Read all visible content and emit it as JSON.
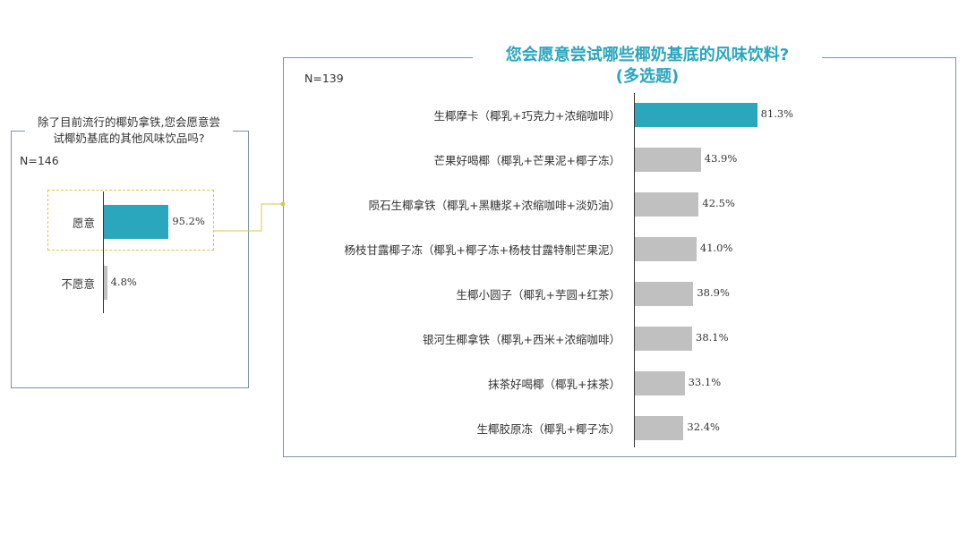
{
  "left": {
    "title_line1": "除了目前流行的椰奶拿铁,您会愿意尝",
    "title_line2": "试椰奶基底的其他风味饮品吗?",
    "n": "N=146"
  },
  "right": {
    "title_line1": "您会愿意尝试哪些椰奶基底的风味饮料?",
    "title_line2": "(多选题)",
    "n": "N=139"
  },
  "colors": {
    "accent": "#2aa6bd",
    "bar_gray": "#c0c0c0",
    "border": "#7f93a6",
    "connector": "#d8c64e"
  },
  "chart_data": [
    {
      "type": "bar",
      "orientation": "horizontal",
      "categories": [
        "愿意",
        "不愿意"
      ],
      "values": [
        95.2,
        4.8
      ],
      "value_labels": [
        "95.2%",
        "4.8%"
      ],
      "xlim": [
        0,
        100
      ],
      "highlight_index": 0
    },
    {
      "type": "bar",
      "orientation": "horizontal",
      "categories": [
        "生椰摩卡（椰乳+巧克力+浓缩咖啡）",
        "芒果好喝椰（椰乳+芒果泥+椰子冻）",
        "陨石生椰拿铁（椰乳+黑糖浆+浓缩咖啡+淡奶油）",
        "杨枝甘露椰子冻（椰乳+椰子冻+杨枝甘露特制芒果泥）",
        "生椰小圆子（椰乳+芋圆+红茶）",
        "银河生椰拿铁（椰乳+西米+浓缩咖啡）",
        "抹茶好喝椰（椰乳+抹茶）",
        "生椰胶原冻（椰乳+椰子冻）"
      ],
      "values": [
        81.3,
        43.9,
        42.5,
        41.0,
        38.9,
        38.1,
        33.1,
        32.4
      ],
      "value_labels": [
        "81.3%",
        "43.9%",
        "42.5%",
        "41.0%",
        "38.9%",
        "38.1%",
        "33.1%",
        "32.4%"
      ],
      "xlim": [
        0,
        100
      ],
      "highlight_index": 0
    }
  ]
}
